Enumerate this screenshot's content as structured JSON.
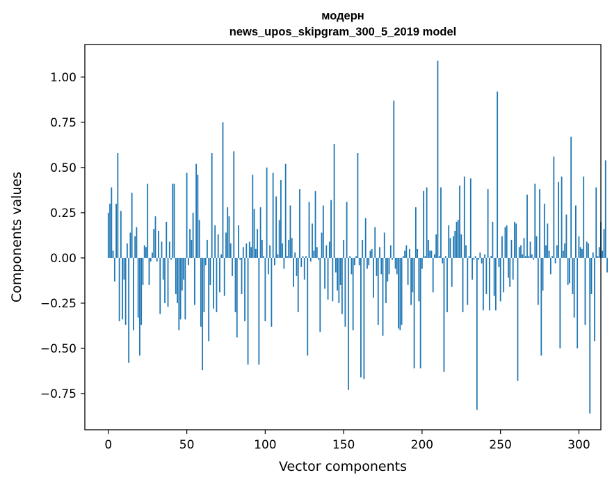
{
  "chart_data": {
    "type": "bar",
    "title_line1": "модерн",
    "title_line2": "news_upos_skipgram_300_5_2019 model",
    "xlabel": "Vector components",
    "ylabel": "Components values",
    "xlim": [
      -15,
      314
    ],
    "ylim": [
      -0.95,
      1.18
    ],
    "xticks": [
      0,
      50,
      100,
      150,
      200,
      250,
      300
    ],
    "xtick_labels": [
      "0",
      "50",
      "100",
      "150",
      "200",
      "250",
      "300"
    ],
    "yticks": [
      -0.75,
      -0.5,
      -0.25,
      0.0,
      0.25,
      0.5,
      0.75,
      1.0
    ],
    "ytick_labels": [
      "−0.75",
      "−0.50",
      "−0.25",
      "0.00",
      "0.25",
      "0.50",
      "0.75",
      "1.00"
    ],
    "color": "#1f77b4",
    "values": [
      0.25,
      0.3,
      0.39,
      0.04,
      -0.13,
      0.3,
      0.58,
      -0.35,
      0.26,
      -0.34,
      -0.12,
      -0.37,
      0.08,
      -0.58,
      0.14,
      0.36,
      -0.4,
      0.12,
      0.17,
      -0.33,
      -0.54,
      -0.37,
      -0.15,
      0.07,
      0.06,
      0.41,
      -0.15,
      -0.02,
      0.03,
      0.16,
      0.23,
      -0.02,
      0.15,
      -0.31,
      0.09,
      -0.12,
      -0.25,
      0.2,
      -0.27,
      0.09,
      -0.01,
      0.41,
      0.41,
      -0.2,
      -0.25,
      -0.4,
      -0.34,
      -0.18,
      -0.12,
      -0.34,
      0.47,
      -0.04,
      0.16,
      0.1,
      0.25,
      -0.26,
      0.52,
      0.46,
      0.21,
      -0.38,
      -0.62,
      -0.3,
      -0.04,
      0.1,
      -0.46,
      -0.15,
      0.58,
      -0.28,
      0.18,
      -0.3,
      0.13,
      -0.19,
      0.02,
      0.75,
      -0.21,
      0.14,
      0.28,
      0.23,
      0.08,
      -0.1,
      0.59,
      -0.3,
      -0.44,
      0.18,
      -0.01,
      -0.2,
      0.06,
      -0.35,
      0.08,
      -0.59,
      0.09,
      0.06,
      0.46,
      0.27,
      0.05,
      0.16,
      -0.59,
      0.28,
      0.1,
      0.01,
      -0.35,
      0.5,
      -0.09,
      0.07,
      -0.38,
      0.47,
      -0.04,
      0.34,
      0.02,
      0.21,
      0.43,
      0.08,
      -0.06,
      0.52,
      0.01,
      0.1,
      0.29,
      0.11,
      -0.16,
      0.03,
      -0.1,
      -0.3,
      0.38,
      -0.05,
      0.01,
      -0.12,
      0.01,
      -0.54,
      0.31,
      -0.02,
      0.19,
      0.04,
      0.37,
      0.06,
      -0.01,
      -0.41,
      0.14,
      0.29,
      -0.17,
      0.07,
      -0.23,
      0.09,
      0.32,
      -0.24,
      0.63,
      -0.08,
      -0.18,
      -0.25,
      -0.15,
      -0.31,
      0.1,
      -0.38,
      0.31,
      -0.73,
      0.01,
      -0.09,
      -0.4,
      -0.04,
      0.01,
      0.58,
      -0.04,
      -0.66,
      0.1,
      -0.67,
      0.22,
      -0.06,
      -0.04,
      0.04,
      0.05,
      -0.22,
      0.17,
      -0.1,
      -0.37,
      0.06,
      -0.09,
      -0.43,
      0.14,
      -0.25,
      -0.13,
      -0.09,
      0.07,
      -0.01,
      0.87,
      -0.06,
      -0.09,
      -0.39,
      -0.4,
      -0.37,
      0.01,
      0.04,
      0.07,
      -0.15,
      0.05,
      -0.26,
      -0.19,
      -0.61,
      0.28,
      0.05,
      -0.24,
      -0.61,
      -0.06,
      0.37,
      0.01,
      0.39,
      0.1,
      0.04,
      0.04,
      -0.19,
      0.02,
      0.13,
      1.09,
      0.01,
      0.39,
      -0.03,
      -0.63,
      0.01,
      -0.3,
      0.18,
      0.11,
      -0.16,
      0.12,
      0.15,
      0.2,
      0.21,
      0.4,
      0.13,
      -0.3,
      0.45,
      0.07,
      -0.26,
      0.01,
      0.44,
      -0.12,
      -0.01,
      0.01,
      -0.84,
      -0.01,
      0.03,
      -0.03,
      -0.29,
      0.02,
      -0.2,
      0.38,
      -0.29,
      0.01,
      0.2,
      -0.21,
      -0.29,
      0.92,
      -0.05,
      -0.24,
      0.12,
      -0.19,
      0.17,
      0.18,
      -0.11,
      -0.16,
      0.1,
      -0.12,
      0.2,
      0.19,
      -0.68,
      0.06,
      0.07,
      0.02,
      0.11,
      0.01,
      0.35,
      0.01,
      0.09,
      0.02,
      -0.01,
      0.41,
      0.12,
      -0.26,
      0.38,
      -0.54,
      -0.18,
      0.3,
      0.07,
      0.19,
      0.04,
      -0.09,
      0.01,
      0.56,
      -0.03,
      0.07,
      0.42,
      -0.5,
      0.45,
      0.04,
      0.08,
      0.24,
      -0.15,
      -0.14,
      0.67,
      -0.2,
      -0.33,
      0.29,
      -0.5,
      0.12,
      0.06,
      0.05,
      0.45,
      -0.37,
      0.09,
      0.08,
      -0.86,
      -0.2,
      0.03,
      -0.46,
      0.39,
      0.01,
      0.06,
      0.2,
      0.04,
      0.16,
      0.54,
      -0.08
    ]
  }
}
